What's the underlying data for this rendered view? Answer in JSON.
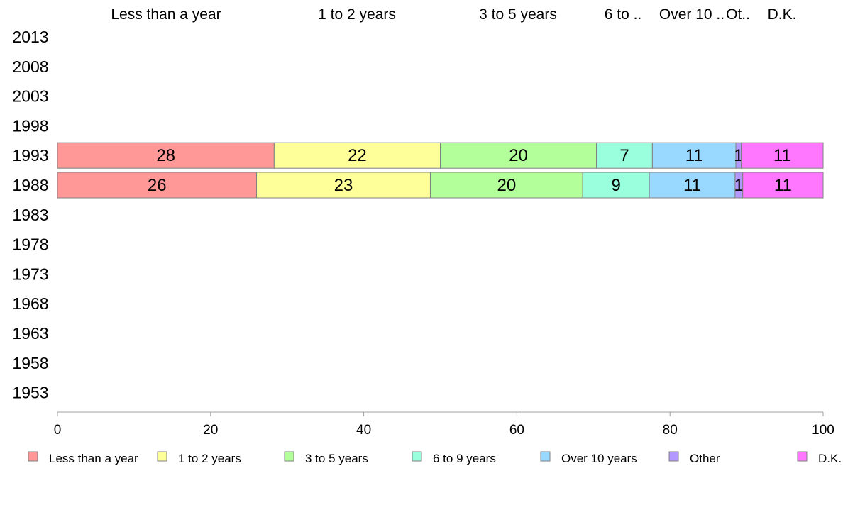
{
  "chart_data": {
    "type": "bar",
    "orientation": "horizontal",
    "stacked": true,
    "title": "",
    "xlabel": "",
    "ylabel": "",
    "xlim": [
      0,
      100
    ],
    "x_ticks": [
      "0",
      "20",
      "40",
      "60",
      "80",
      "100"
    ],
    "categories": [
      "2013",
      "2008",
      "2003",
      "1998",
      "1993",
      "1988",
      "1983",
      "1978",
      "1973",
      "1968",
      "1963",
      "1958",
      "1953"
    ],
    "top_labels": [
      "Less than a year",
      "1 to 2 years",
      "3 to 5 years",
      "6 to ..",
      "Over 10 ..",
      "Ot..",
      "D.K."
    ],
    "series": [
      {
        "name": "Less than a year",
        "color": "#ff9896",
        "values": [
          null,
          null,
          null,
          null,
          28.3,
          26.0,
          null,
          null,
          null,
          null,
          null,
          null,
          null
        ],
        "labels": [
          "",
          "",
          "",
          "",
          "28",
          "26",
          "",
          "",
          "",
          "",
          "",
          "",
          ""
        ]
      },
      {
        "name": "1 to 2 years",
        "color": "#ffff99",
        "values": [
          null,
          null,
          null,
          null,
          21.7,
          22.7,
          null,
          null,
          null,
          null,
          null,
          null,
          null
        ],
        "labels": [
          "",
          "",
          "",
          "",
          "22",
          "23",
          "",
          "",
          "",
          "",
          "",
          "",
          ""
        ]
      },
      {
        "name": "3 to 5 years",
        "color": "#b3ff99",
        "values": [
          null,
          null,
          null,
          null,
          20.4,
          19.9,
          null,
          null,
          null,
          null,
          null,
          null,
          null
        ],
        "labels": [
          "",
          "",
          "",
          "",
          "20",
          "20",
          "",
          "",
          "",
          "",
          "",
          "",
          ""
        ]
      },
      {
        "name": "6 to 9 years",
        "color": "#99ffdd",
        "values": [
          null,
          null,
          null,
          null,
          7.3,
          8.7,
          null,
          null,
          null,
          null,
          null,
          null,
          null
        ],
        "labels": [
          "",
          "",
          "",
          "",
          "7",
          "9",
          "",
          "",
          "",
          "",
          "",
          "",
          ""
        ]
      },
      {
        "name": "Over 10 years",
        "color": "#99d9ff",
        "values": [
          null,
          null,
          null,
          null,
          10.9,
          11.2,
          null,
          null,
          null,
          null,
          null,
          null,
          null
        ],
        "labels": [
          "",
          "",
          "",
          "",
          "11",
          "11",
          "",
          "",
          "",
          "",
          "",
          "",
          ""
        ]
      },
      {
        "name": "Other",
        "color": "#b399ff",
        "values": [
          null,
          null,
          null,
          null,
          0.7,
          1.0,
          null,
          null,
          null,
          null,
          null,
          null,
          null
        ],
        "labels": [
          "",
          "",
          "",
          "",
          "1",
          "1",
          "",
          "",
          "",
          "",
          "",
          "",
          ""
        ]
      },
      {
        "name": "D.K.",
        "color": "#ff77ff",
        "values": [
          null,
          null,
          null,
          null,
          10.7,
          10.5,
          null,
          null,
          null,
          null,
          null,
          null,
          null
        ],
        "labels": [
          "",
          "",
          "",
          "",
          "11",
          "11",
          "",
          "",
          "",
          "",
          "",
          "",
          ""
        ]
      }
    ],
    "legend": {
      "position": "bottom",
      "items": [
        "Less than a year",
        "1 to 2 years",
        "3 to 5 years",
        "6 to 9 years",
        "Over 10 years",
        "Other",
        "D.K."
      ]
    },
    "grid": false
  }
}
